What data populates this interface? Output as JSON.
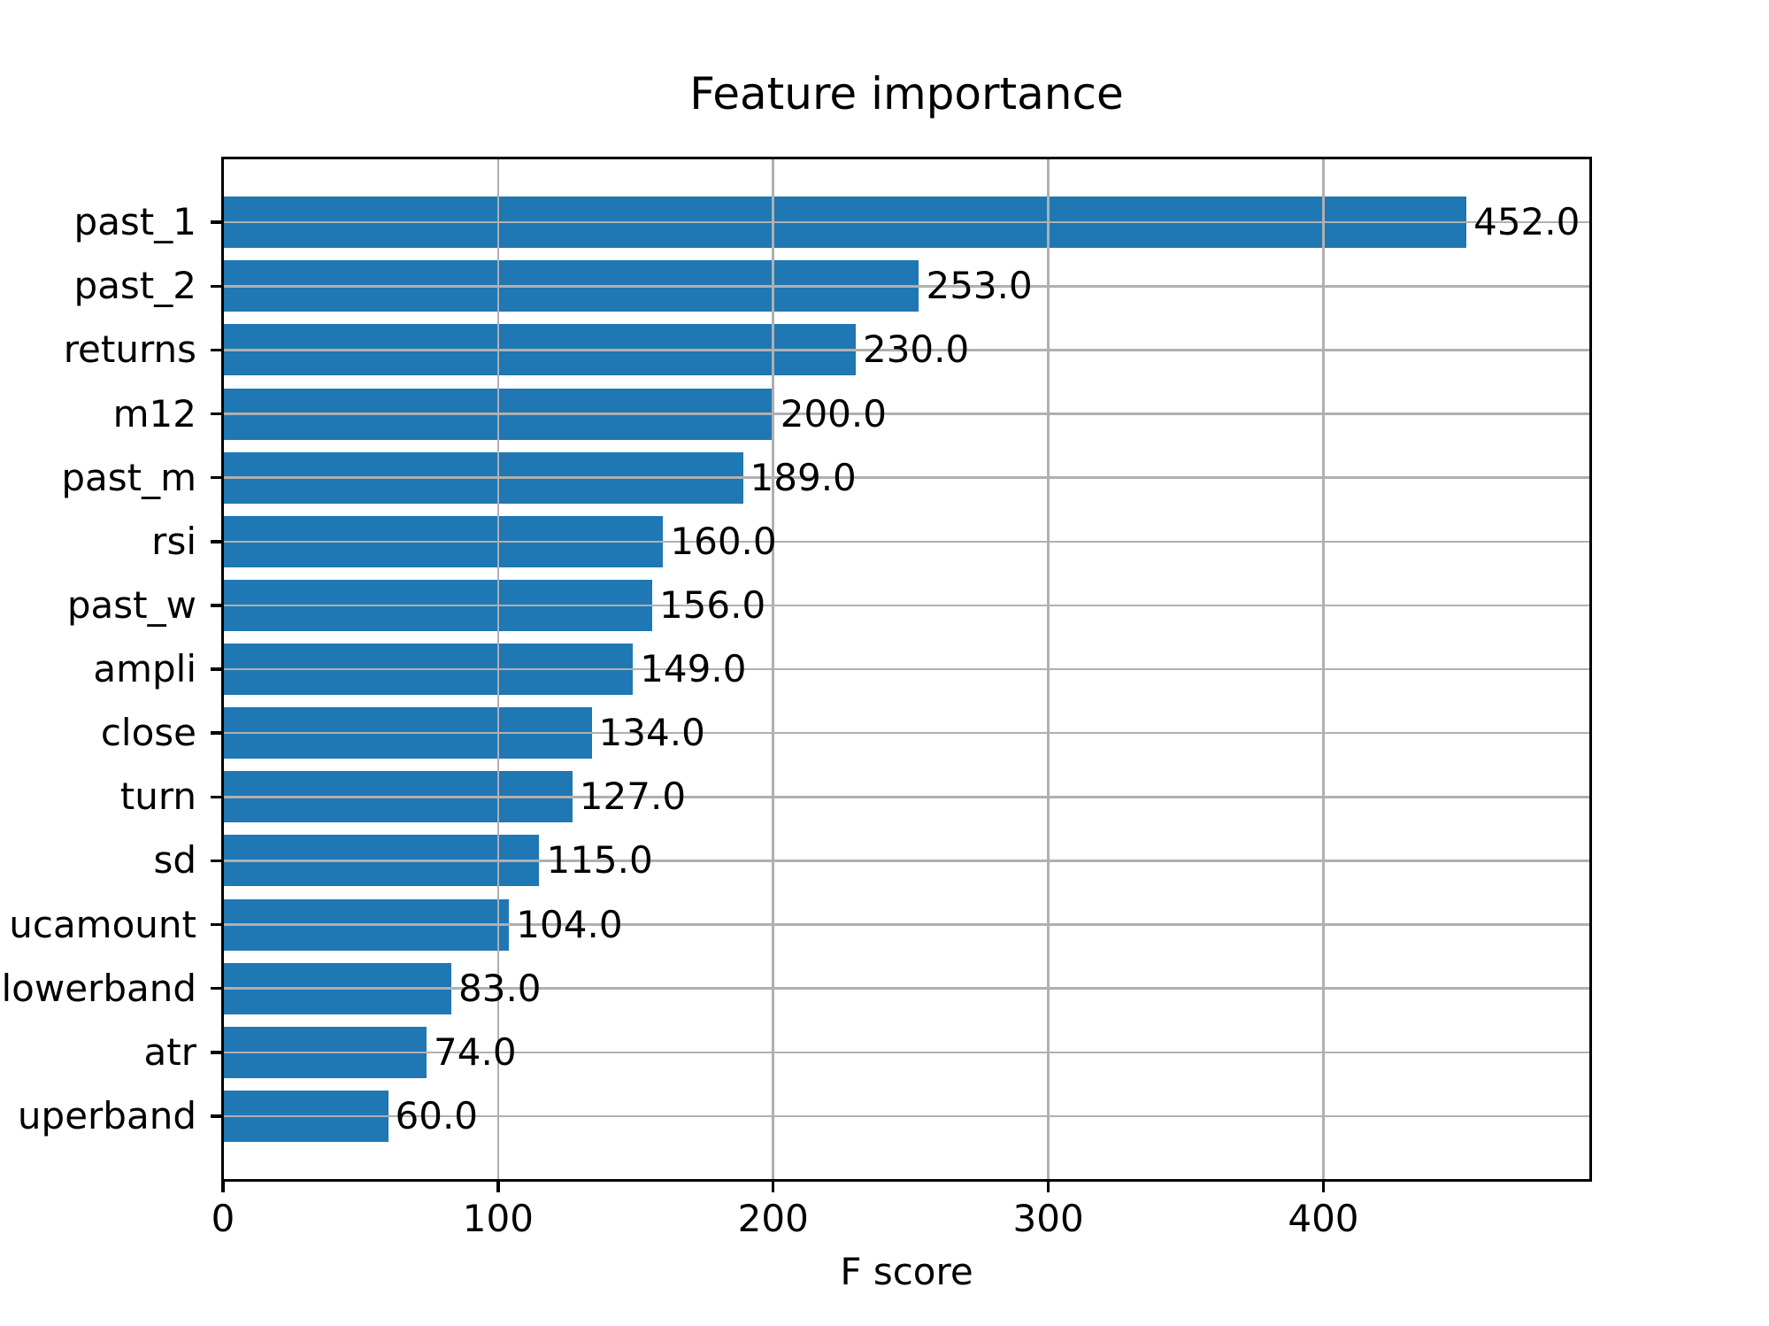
{
  "chart_data": {
    "type": "bar",
    "orientation": "horizontal",
    "title": "Feature importance",
    "xlabel": "F score",
    "ylabel": "",
    "categories": [
      "past_1",
      "past_2",
      "returns",
      "m12",
      "past_m",
      "rsi",
      "past_w",
      "ampli",
      "close",
      "turn",
      "sd",
      "ucamount",
      "lowerband",
      "atr",
      "uperband"
    ],
    "values": [
      452.0,
      253.0,
      230.0,
      200.0,
      189.0,
      160.0,
      156.0,
      149.0,
      134.0,
      127.0,
      115.0,
      104.0,
      83.0,
      74.0,
      60.0
    ],
    "value_labels": [
      "452.0",
      "253.0",
      "230.0",
      "200.0",
      "189.0",
      "160.0",
      "156.0",
      "149.0",
      "134.0",
      "127.0",
      "115.0",
      "104.0",
      "83.0",
      "74.0",
      "60.0"
    ],
    "x_ticks": [
      0,
      100,
      200,
      300,
      400
    ],
    "xlim": [
      0,
      497
    ],
    "grid": true,
    "grid_above_bars": true,
    "legend": "none",
    "bar_color": "#1f77b4",
    "grid_color": "#b0b0b0",
    "axis_color": "#000000",
    "text_color": "#000000",
    "background_color": "#ffffff"
  }
}
